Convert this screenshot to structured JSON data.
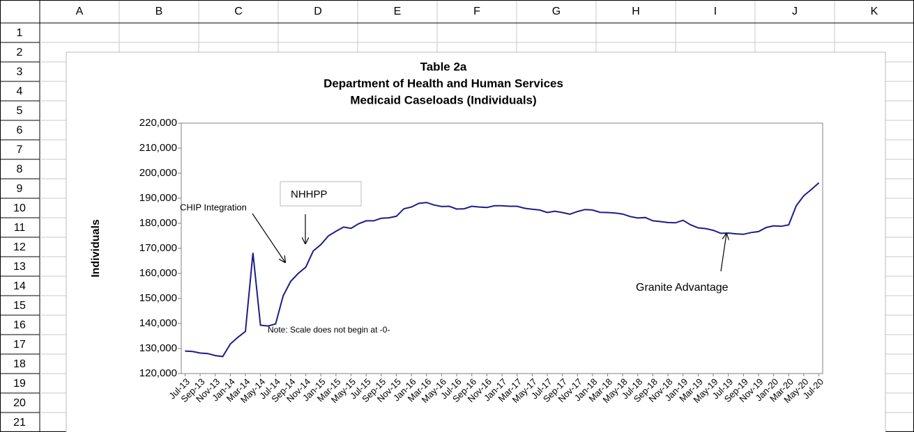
{
  "spreadsheet": {
    "columns": [
      "A",
      "B",
      "C",
      "D",
      "E",
      "F",
      "G",
      "H",
      "I",
      "J",
      "K"
    ],
    "rows": [
      1,
      2,
      3,
      4,
      5,
      6,
      7,
      8,
      9,
      10,
      11,
      12,
      13,
      14,
      15,
      16,
      17,
      18,
      19,
      20,
      21
    ]
  },
  "chart_data": {
    "type": "line",
    "title": [
      "Table 2a",
      "Department of Health and Human Services",
      "Medicaid Caseloads  (Individuals)"
    ],
    "y_label": "Individuals",
    "annotations": [
      "CHIP Integration",
      "NHHPP",
      "Granite Advantage",
      "Note:  Scale does not begin at -0-"
    ],
    "categories": [
      "Jul-13",
      null,
      "Sep-13",
      null,
      "Nov-13",
      null,
      "Jan-14",
      null,
      "Mar-14",
      null,
      "May-14",
      null,
      "Jul-14",
      null,
      "Sep-14",
      null,
      "Nov-14",
      null,
      "Jan-15",
      null,
      "Mar-15",
      null,
      "May-15",
      null,
      "Jul-15",
      null,
      "Sep-15",
      null,
      "Nov-15",
      null,
      "Jan-16",
      null,
      "Mar-16",
      null,
      "May-16",
      null,
      "Jul-16",
      null,
      "Sep-16",
      null,
      "Nov-16",
      null,
      "Jan-17",
      null,
      "Mar-17",
      null,
      "May-17",
      null,
      "Jul-17",
      null,
      "Sep-17",
      null,
      "Nov-17",
      null,
      "Jan-18",
      null,
      "Mar-18",
      null,
      "May-18",
      null,
      "Jul-18",
      null,
      "Sep-18",
      null,
      "Nov-18",
      null,
      "Jan-19",
      null,
      "Mar-19",
      null,
      "May-19",
      null,
      "Jul-19",
      null,
      "Sep-19",
      null,
      "Nov-19",
      null,
      "Jan-20",
      null,
      "Mar-20",
      null,
      "May-20",
      null,
      "Jul-20"
    ],
    "values": [
      129000,
      128800,
      128200,
      128000,
      127200,
      126800,
      131800,
      134500,
      136800,
      168200,
      139300,
      139000,
      139800,
      151000,
      156800,
      160000,
      162500,
      169000,
      171500,
      175000,
      176800,
      178500,
      178000,
      179800,
      181000,
      181000,
      182000,
      182200,
      182800,
      185800,
      186500,
      188000,
      188300,
      187300,
      186700,
      186800,
      185700,
      185800,
      186800,
      186500,
      186300,
      187000,
      187000,
      186800,
      186800,
      186000,
      185600,
      185300,
      184300,
      184800,
      184300,
      183600,
      184700,
      185500,
      185300,
      184400,
      184300,
      184100,
      183700,
      182700,
      182100,
      182300,
      181000,
      180700,
      180300,
      180200,
      181200,
      179400,
      178200,
      177900,
      177200,
      176000,
      176100,
      175800,
      175600,
      176300,
      176700,
      178300,
      179000,
      178800,
      179400,
      187000,
      191000,
      193500,
      196200
    ],
    "color": "#1c1c8a",
    "ylim": [
      120000,
      220000
    ],
    "yticks": [
      {
        "value": 120000,
        "label": "120,000"
      },
      {
        "value": 130000,
        "label": "130,000"
      },
      {
        "value": 140000,
        "label": "140,000"
      },
      {
        "value": 150000,
        "label": "150,000"
      },
      {
        "value": 160000,
        "label": "160,000"
      },
      {
        "value": 170000,
        "label": "170,000"
      },
      {
        "value": 180000,
        "label": "180,000"
      },
      {
        "value": 190000,
        "label": "190,000"
      },
      {
        "value": 200000,
        "label": "200,000"
      },
      {
        "value": 210000,
        "label": "210,000"
      },
      {
        "value": 220000,
        "label": "220,000"
      }
    ],
    "grid": false
  }
}
